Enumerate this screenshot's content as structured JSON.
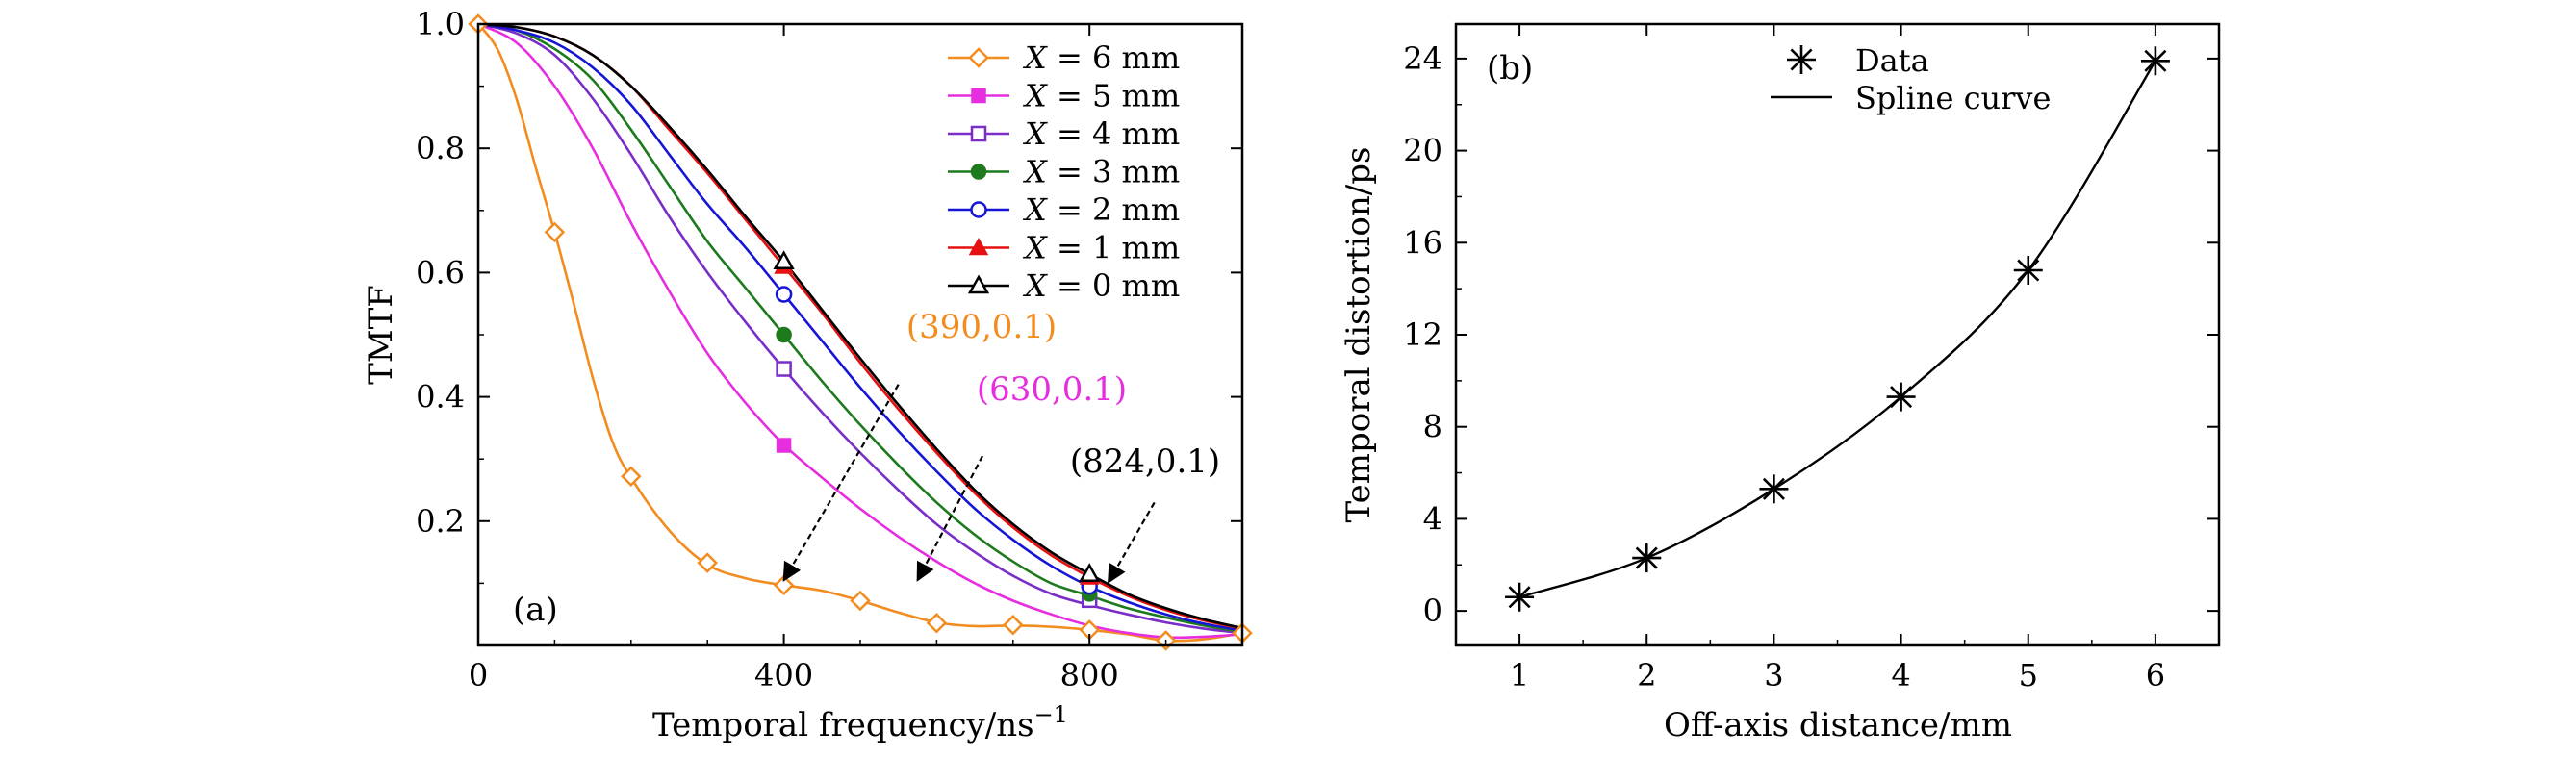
{
  "chart_data": [
    {
      "type": "line",
      "panel_label": "(a)",
      "xlabel": "Temporal frequency/ns",
      "xlabel_superscript": "−1",
      "ylabel": "TMTF",
      "xlim": [
        0,
        1000
      ],
      "ylim": [
        0,
        1.0
      ],
      "xticks": [
        "0",
        "400",
        "800"
      ],
      "yticks": [
        "0.2",
        "0.4",
        "0.6",
        "0.8",
        "1.0"
      ],
      "legend_position": "top-right",
      "series": [
        {
          "name": "X = 6 mm",
          "color": "#F28C1F",
          "marker": "diamond-open",
          "curve": [
            [
              0,
              1.0
            ],
            [
              25,
              0.96
            ],
            [
              50,
              0.88
            ],
            [
              75,
              0.77
            ],
            [
              100,
              0.665
            ],
            [
              125,
              0.55
            ],
            [
              150,
              0.43
            ],
            [
              175,
              0.33
            ],
            [
              200,
              0.27
            ],
            [
              250,
              0.185
            ],
            [
              300,
              0.13
            ],
            [
              350,
              0.108
            ],
            [
              400,
              0.097
            ],
            [
              450,
              0.088
            ],
            [
              500,
              0.072
            ],
            [
              550,
              0.053
            ],
            [
              600,
              0.037
            ],
            [
              650,
              0.031
            ],
            [
              700,
              0.032
            ],
            [
              750,
              0.03
            ],
            [
              800,
              0.025
            ],
            [
              850,
              0.018
            ],
            [
              900,
              0.008
            ],
            [
              950,
              0.01
            ],
            [
              1000,
              0.02
            ]
          ],
          "markers": [
            [
              0,
              1.0
            ],
            [
              100,
              0.665
            ],
            [
              200,
              0.272
            ],
            [
              300,
              0.133
            ],
            [
              400,
              0.097
            ],
            [
              500,
              0.072
            ],
            [
              600,
              0.036
            ],
            [
              700,
              0.033
            ],
            [
              800,
              0.025
            ],
            [
              900,
              0.008
            ],
            [
              1000,
              0.02
            ]
          ]
        },
        {
          "name": "X = 5 mm",
          "color": "#E62EE0",
          "marker": "square-filled",
          "curve": [
            [
              0,
              1.0
            ],
            [
              50,
              0.97
            ],
            [
              100,
              0.9
            ],
            [
              150,
              0.8
            ],
            [
              200,
              0.68
            ],
            [
              250,
              0.57
            ],
            [
              300,
              0.47
            ],
            [
              350,
              0.39
            ],
            [
              400,
              0.323
            ],
            [
              450,
              0.27
            ],
            [
              500,
              0.22
            ],
            [
              550,
              0.175
            ],
            [
              600,
              0.135
            ],
            [
              650,
              0.1
            ],
            [
              700,
              0.072
            ],
            [
              750,
              0.05
            ],
            [
              800,
              0.032
            ],
            [
              850,
              0.02
            ],
            [
              900,
              0.013
            ],
            [
              950,
              0.014
            ],
            [
              1000,
              0.018
            ]
          ],
          "markers": [
            [
              400,
              0.322
            ]
          ]
        },
        {
          "name": "X = 4 mm",
          "color": "#7A2EC8",
          "marker": "square-open",
          "curve": [
            [
              0,
              1.0
            ],
            [
              50,
              0.985
            ],
            [
              100,
              0.95
            ],
            [
              150,
              0.88
            ],
            [
              200,
              0.79
            ],
            [
              250,
              0.69
            ],
            [
              300,
              0.6
            ],
            [
              350,
              0.52
            ],
            [
              400,
              0.445
            ],
            [
              450,
              0.375
            ],
            [
              500,
              0.31
            ],
            [
              550,
              0.25
            ],
            [
              600,
              0.195
            ],
            [
              650,
              0.15
            ],
            [
              700,
              0.112
            ],
            [
              750,
              0.083
            ],
            [
              800,
              0.065
            ],
            [
              850,
              0.05
            ],
            [
              900,
              0.037
            ],
            [
              950,
              0.027
            ],
            [
              1000,
              0.02
            ]
          ],
          "markers": [
            [
              400,
              0.445
            ],
            [
              800,
              0.073
            ]
          ]
        },
        {
          "name": "X = 3 mm",
          "color": "#1D7A1D",
          "marker": "circle-filled",
          "curve": [
            [
              0,
              1.0
            ],
            [
              50,
              0.99
            ],
            [
              100,
              0.96
            ],
            [
              150,
              0.91
            ],
            [
              200,
              0.83
            ],
            [
              250,
              0.74
            ],
            [
              300,
              0.65
            ],
            [
              350,
              0.575
            ],
            [
              400,
              0.5
            ],
            [
              450,
              0.425
            ],
            [
              500,
              0.355
            ],
            [
              550,
              0.29
            ],
            [
              600,
              0.23
            ],
            [
              650,
              0.178
            ],
            [
              700,
              0.135
            ],
            [
              750,
              0.1
            ],
            [
              800,
              0.08
            ],
            [
              850,
              0.06
            ],
            [
              900,
              0.045
            ],
            [
              950,
              0.032
            ],
            [
              1000,
              0.022
            ]
          ],
          "markers": [
            [
              400,
              0.5
            ],
            [
              800,
              0.083
            ]
          ]
        },
        {
          "name": "X = 2 mm",
          "color": "#1515D6",
          "marker": "circle-open",
          "curve": [
            [
              0,
              1.0
            ],
            [
              50,
              0.99
            ],
            [
              100,
              0.97
            ],
            [
              150,
              0.93
            ],
            [
              200,
              0.87
            ],
            [
              250,
              0.79
            ],
            [
              300,
              0.71
            ],
            [
              350,
              0.64
            ],
            [
              400,
              0.565
            ],
            [
              450,
              0.49
            ],
            [
              500,
              0.415
            ],
            [
              550,
              0.345
            ],
            [
              600,
              0.28
            ],
            [
              650,
              0.22
            ],
            [
              700,
              0.17
            ],
            [
              750,
              0.128
            ],
            [
              800,
              0.095
            ],
            [
              850,
              0.07
            ],
            [
              900,
              0.05
            ],
            [
              950,
              0.035
            ],
            [
              1000,
              0.024
            ]
          ],
          "markers": [
            [
              400,
              0.565
            ],
            [
              800,
              0.095
            ]
          ]
        },
        {
          "name": "X = 1 mm",
          "color": "#E61010",
          "marker": "triangle-filled",
          "curve": [
            [
              0,
              1.0
            ],
            [
              50,
              0.995
            ],
            [
              100,
              0.98
            ],
            [
              150,
              0.95
            ],
            [
              200,
              0.9
            ],
            [
              250,
              0.83
            ],
            [
              300,
              0.76
            ],
            [
              350,
              0.685
            ],
            [
              400,
              0.61
            ],
            [
              450,
              0.535
            ],
            [
              500,
              0.455
            ],
            [
              550,
              0.38
            ],
            [
              600,
              0.31
            ],
            [
              650,
              0.245
            ],
            [
              700,
              0.19
            ],
            [
              750,
              0.145
            ],
            [
              800,
              0.11
            ],
            [
              850,
              0.08
            ],
            [
              900,
              0.057
            ],
            [
              950,
              0.04
            ],
            [
              1000,
              0.027
            ]
          ],
          "markers": [
            [
              400,
              0.61
            ],
            [
              800,
              0.11
            ]
          ]
        },
        {
          "name": "X = 0 mm",
          "color": "#000000",
          "marker": "triangle-open",
          "curve": [
            [
              0,
              1.0
            ],
            [
              50,
              0.995
            ],
            [
              100,
              0.98
            ],
            [
              150,
              0.95
            ],
            [
              200,
              0.9
            ],
            [
              250,
              0.835
            ],
            [
              300,
              0.765
            ],
            [
              350,
              0.69
            ],
            [
              400,
              0.618
            ],
            [
              450,
              0.54
            ],
            [
              500,
              0.462
            ],
            [
              550,
              0.387
            ],
            [
              600,
              0.316
            ],
            [
              650,
              0.25
            ],
            [
              700,
              0.195
            ],
            [
              750,
              0.15
            ],
            [
              800,
              0.115
            ],
            [
              850,
              0.083
            ],
            [
              900,
              0.06
            ],
            [
              950,
              0.042
            ],
            [
              1000,
              0.028
            ]
          ],
          "markers": [
            [
              400,
              0.618
            ],
            [
              800,
              0.115
            ]
          ]
        }
      ],
      "annotations": [
        {
          "text": "(390,0.1)",
          "color": "#F28C1F",
          "from": [
            550,
            0.42
          ],
          "to": [
            400,
            0.105
          ]
        },
        {
          "text": "(630,0.1)",
          "color": "#E62EE0",
          "from": [
            660,
            0.305
          ],
          "to": [
            575,
            0.105
          ]
        },
        {
          "text": "(824,0.1)",
          "color": "#000000",
          "from": [
            885,
            0.23
          ],
          "to": [
            825,
            0.102
          ]
        }
      ]
    },
    {
      "type": "line",
      "panel_label": "(b)",
      "xlabel": "Off-axis distance/mm",
      "ylabel": "Temporal distortion/ps",
      "xlim": [
        0.5,
        6.5
      ],
      "ylim": [
        -1.5,
        25.5
      ],
      "xticks": [
        "1",
        "2",
        "3",
        "4",
        "5",
        "6"
      ],
      "yticks": [
        "0",
        "4",
        "8",
        "12",
        "16",
        "20",
        "24"
      ],
      "legend_position": "top-center",
      "series": [
        {
          "name": "Data",
          "marker": "asterisk",
          "color": "#000000",
          "x": [
            1,
            2,
            3,
            4,
            5,
            6
          ],
          "y": [
            0.6,
            2.3,
            5.3,
            9.3,
            14.8,
            23.9
          ]
        },
        {
          "name": "Spline curve",
          "marker": "none",
          "color": "#000000",
          "x": [
            1,
            2,
            3,
            4,
            5,
            6
          ],
          "y": [
            0.6,
            2.3,
            5.3,
            9.3,
            14.8,
            23.9
          ]
        }
      ]
    }
  ]
}
